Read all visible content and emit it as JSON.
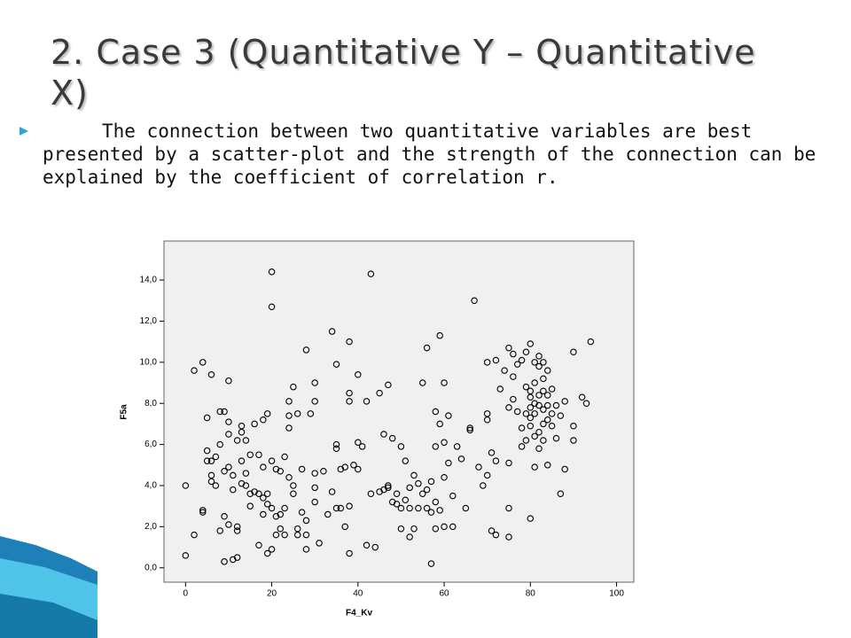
{
  "slide": {
    "title": "2. Case 3 (Quantitative Y – Quantitative X)",
    "bullet": "The connection between two quantitative variables are best presented by a scatter-plot and the strength of the connection can be explained by the coefficient of correlation r."
  },
  "chart_data": {
    "type": "scatter",
    "x_label": "F4_Kv",
    "y_label": "F5a",
    "xlim": [
      -5,
      104
    ],
    "ylim": [
      -0.7,
      15.9
    ],
    "xticks": [
      0,
      20,
      40,
      60,
      80,
      100
    ],
    "yticks": [
      {
        "value": 0,
        "label": "0,0"
      },
      {
        "value": 2,
        "label": "2,0"
      },
      {
        "value": 4,
        "label": "4,0"
      },
      {
        "value": 6,
        "label": "6,0"
      },
      {
        "value": 8,
        "label": "8,0"
      },
      {
        "value": 10,
        "label": "10,0"
      },
      {
        "value": 12,
        "label": "12,0"
      },
      {
        "value": 14,
        "label": "14,0"
      }
    ],
    "color": "#000000",
    "x": [
      0,
      0,
      2,
      2,
      4,
      4,
      4,
      5,
      5,
      5,
      6,
      6,
      6,
      6,
      7,
      7,
      8,
      8,
      8,
      9,
      9,
      9,
      9,
      10,
      10,
      10,
      10,
      10,
      11,
      11,
      11,
      12,
      12,
      12,
      12,
      13,
      13,
      13,
      13,
      14,
      14,
      14,
      15,
      15,
      15,
      16,
      16,
      17,
      17,
      17,
      18,
      18,
      18,
      18,
      19,
      19,
      19,
      19,
      20,
      20,
      20,
      20,
      20,
      21,
      21,
      21,
      22,
      22,
      22,
      23,
      23,
      23,
      24,
      24,
      24,
      24,
      25,
      25,
      25,
      26,
      26,
      26,
      27,
      27,
      28,
      28,
      28,
      28,
      29,
      30,
      30,
      30,
      30,
      30,
      31,
      32,
      33,
      34,
      34,
      35,
      35,
      35,
      35,
      36,
      36,
      37,
      37,
      38,
      38,
      38,
      38,
      38,
      39,
      40,
      40,
      40,
      41,
      42,
      42,
      43,
      43,
      44,
      45,
      45,
      46,
      46,
      47,
      47,
      47,
      48,
      48,
      49,
      49,
      50,
      50,
      50,
      51,
      51,
      52,
      52,
      52,
      53,
      53,
      54,
      54,
      55,
      55,
      56,
      56,
      56,
      57,
      57,
      57,
      58,
      58,
      58,
      58,
      59,
      59,
      59,
      60,
      60,
      60,
      60,
      61,
      61,
      62,
      62,
      63,
      64,
      65,
      66,
      66,
      67,
      68,
      69,
      70,
      70,
      70,
      70,
      71,
      71,
      72,
      72,
      72,
      73,
      74,
      75,
      75,
      75,
      75,
      75,
      76,
      76,
      76,
      77,
      77,
      78,
      78,
      78,
      79,
      79,
      79,
      79,
      80,
      80,
      80,
      80,
      80,
      80,
      80,
      81,
      81,
      81,
      81,
      81,
      81,
      82,
      82,
      82,
      82,
      82,
      82,
      83,
      83,
      83,
      83,
      83,
      83,
      84,
      84,
      84,
      84,
      84,
      85,
      85,
      85,
      86,
      86,
      87,
      87,
      88,
      88,
      90,
      90,
      90,
      92,
      93,
      94
    ],
    "values": [
      0.6,
      4.0,
      1.6,
      9.6,
      10.0,
      2.8,
      2.7,
      7.3,
      5.7,
      5.2,
      5.2,
      4.5,
      4.2,
      9.4,
      4.0,
      5.4,
      1.8,
      6.0,
      7.6,
      2.5,
      7.6,
      4.7,
      0.3,
      9.1,
      4.9,
      6.5,
      7.1,
      2.1,
      3.8,
      0.4,
      4.5,
      0.5,
      2.0,
      1.8,
      6.2,
      6.6,
      6.9,
      4.1,
      5.2,
      4.6,
      4.0,
      6.2,
      3.6,
      5.5,
      3.0,
      3.7,
      7.0,
      3.6,
      5.5,
      1.1,
      3.4,
      4.9,
      7.2,
      2.6,
      7.5,
      3.6,
      3.1,
      0.7,
      14.4,
      12.7,
      5.2,
      2.9,
      0.9,
      2.5,
      4.8,
      1.6,
      2.6,
      1.9,
      4.7,
      2.9,
      5.4,
      1.6,
      6.8,
      7.4,
      8.1,
      4.4,
      8.8,
      4.0,
      3.6,
      7.5,
      1.6,
      1.9,
      2.7,
      4.8,
      2.3,
      10.6,
      1.6,
      0.9,
      7.5,
      9.0,
      8.1,
      3.9,
      4.6,
      3.2,
      1.2,
      4.7,
      2.6,
      11.5,
      3.7,
      2.9,
      9.9,
      6.0,
      5.8,
      4.8,
      2.9,
      4.9,
      2.0,
      11.0,
      8.5,
      8.1,
      3.0,
      0.7,
      5.0,
      6.1,
      4.8,
      9.4,
      5.9,
      1.1,
      8.1,
      14.3,
      3.6,
      1.0,
      8.5,
      3.7,
      3.8,
      6.5,
      3.9,
      4.0,
      8.9,
      6.3,
      3.2,
      3.1,
      3.6,
      2.9,
      5.9,
      1.9,
      5.2,
      3.3,
      2.9,
      1.5,
      3.9,
      4.5,
      1.9,
      2.9,
      4.1,
      9.0,
      3.6,
      10.7,
      2.9,
      3.8,
      4.2,
      0.2,
      2.7,
      3.2,
      1.9,
      5.9,
      7.6,
      2.8,
      11.3,
      7.0,
      6.1,
      9.0,
      4.4,
      2.0,
      5.1,
      7.4,
      3.5,
      2.0,
      5.9,
      5.3,
      2.9,
      6.8,
      6.7,
      13.0,
      4.9,
      4.0,
      10.0,
      7.5,
      7.2,
      4.5,
      1.8,
      5.6,
      10.1,
      5.2,
      1.6,
      8.7,
      9.6,
      10.7,
      7.8,
      2.9,
      5.1,
      1.5,
      9.3,
      10.4,
      8.2,
      7.6,
      9.9,
      10.1,
      6.8,
      5.9,
      10.5,
      8.8,
      7.5,
      6.2,
      10.9,
      8.6,
      8.3,
      7.8,
      7.3,
      6.9,
      2.4,
      10.0,
      9.0,
      8.0,
      7.5,
      6.4,
      4.9,
      10.3,
      9.8,
      8.4,
      7.9,
      6.6,
      5.8,
      10.0,
      9.2,
      8.6,
      7.7,
      7.0,
      6.2,
      9.6,
      8.4,
      7.9,
      7.2,
      5.0,
      8.7,
      7.5,
      6.9,
      6.3,
      7.9,
      3.6,
      7.4,
      4.8,
      8.1,
      6.9,
      6.2,
      10.5,
      8.3,
      8.0,
      11.0
    ]
  }
}
